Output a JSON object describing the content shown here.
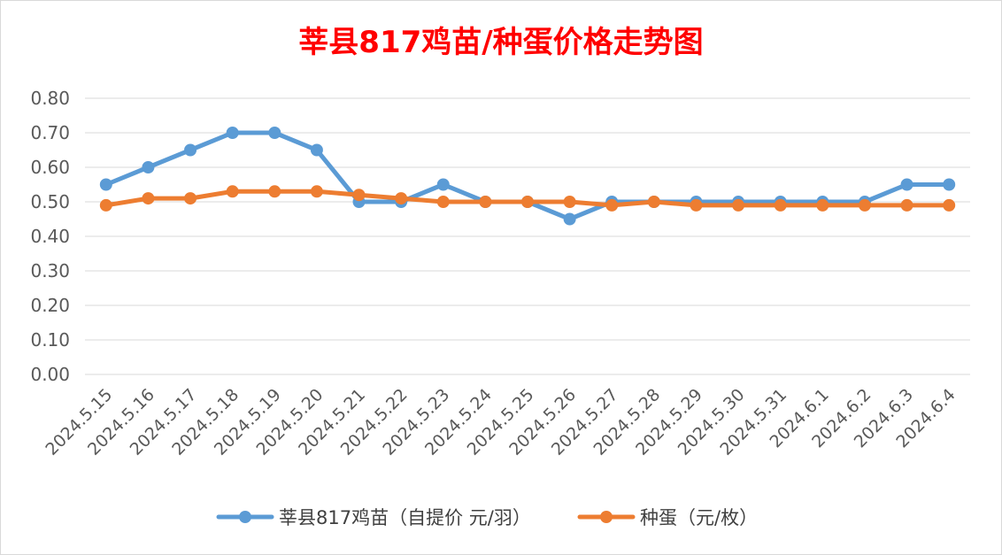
{
  "chart_data": {
    "type": "line",
    "title": "莘县817鸡苗/种蛋价格走势图",
    "categories": [
      "2024.5.15",
      "2024.5.16",
      "2024.5.17",
      "2024.5.18",
      "2024.5.19",
      "2024.5.20",
      "2024.5.21",
      "2024.5.22",
      "2024.5.23",
      "2024.5.24",
      "2024.5.25",
      "2024.5.26",
      "2024.5.27",
      "2024.5.28",
      "2024.5.29",
      "2024.5.30",
      "2024.5.31",
      "2024.6.1",
      "2024.6.2",
      "2024.6.3",
      "2024.6.4"
    ],
    "series": [
      {
        "name": "莘县817鸡苗（自提价 元/羽）",
        "color": "#5b9bd5",
        "values": [
          0.55,
          0.6,
          0.65,
          0.7,
          0.7,
          0.65,
          0.5,
          0.5,
          0.55,
          0.5,
          0.5,
          0.45,
          0.5,
          0.5,
          0.5,
          0.5,
          0.5,
          0.5,
          0.5,
          0.55,
          0.55
        ]
      },
      {
        "name": "种蛋（元/枚）",
        "color": "#ed7d31",
        "values": [
          0.49,
          0.51,
          0.51,
          0.53,
          0.53,
          0.53,
          0.52,
          0.51,
          0.5,
          0.5,
          0.5,
          0.5,
          0.49,
          0.5,
          0.49,
          0.49,
          0.49,
          0.49,
          0.49,
          0.49,
          0.49
        ]
      }
    ],
    "ylim": [
      0,
      0.8
    ],
    "yticks": [
      "0.00",
      "0.10",
      "0.20",
      "0.30",
      "0.40",
      "0.50",
      "0.60",
      "0.70",
      "0.80"
    ],
    "grid": true,
    "legend_position": "bottom",
    "xlabel": "",
    "ylabel": ""
  }
}
